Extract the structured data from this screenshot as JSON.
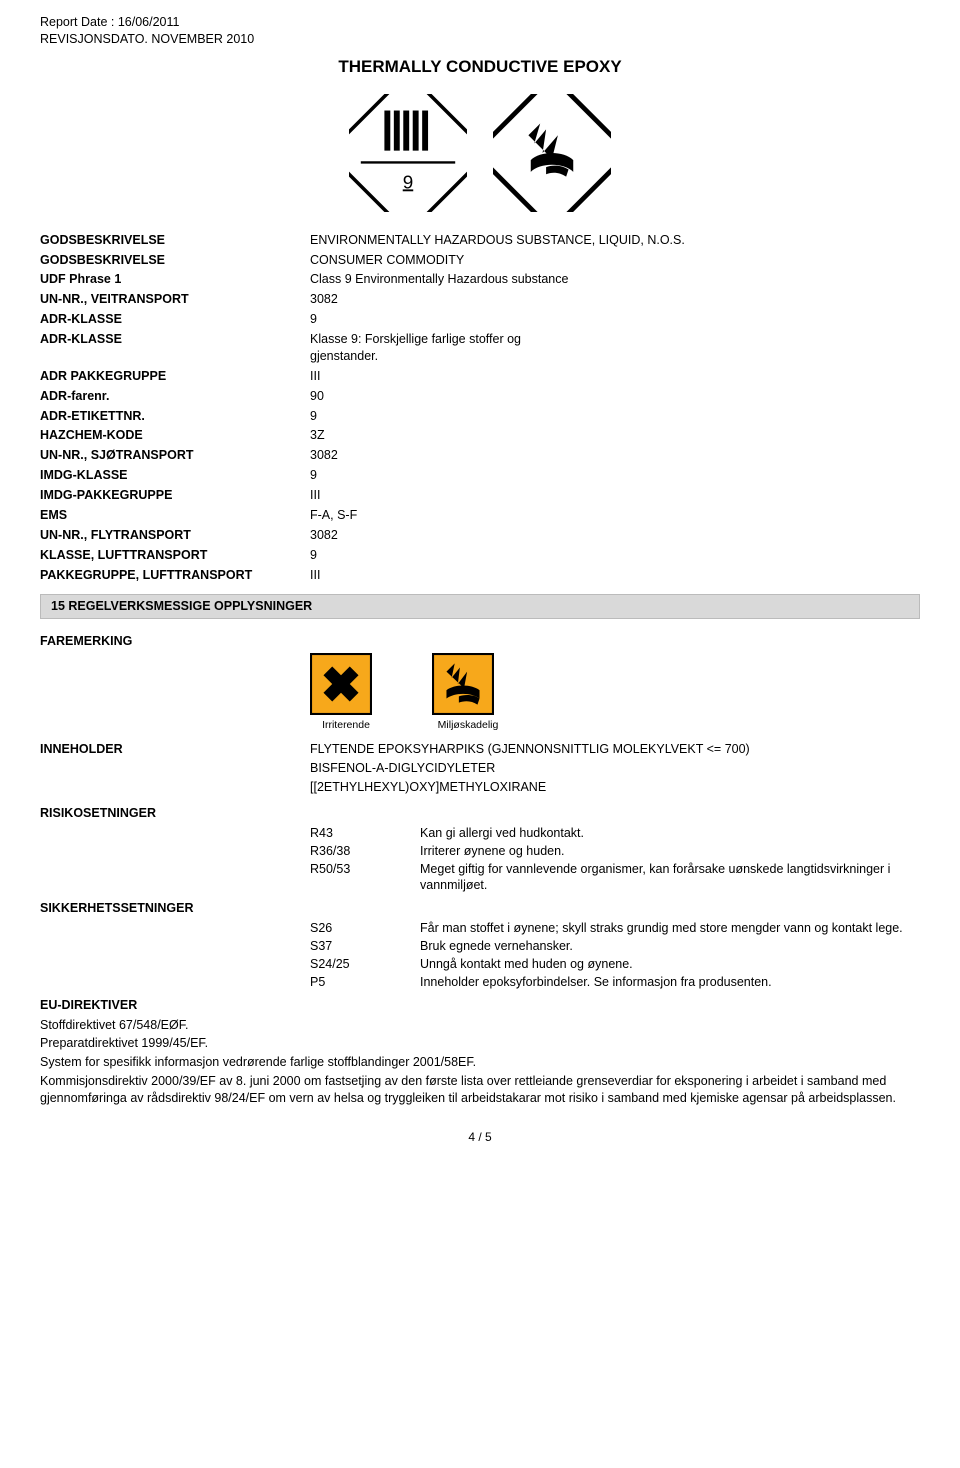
{
  "header": {
    "report_date_label": "Report Date : 16/06/2011",
    "revision_label": "REVISJONSDATO. NOVEMBER 2010",
    "title": "THERMALLY CONDUCTIVE EPOXY"
  },
  "placards": {
    "class9_label": "9",
    "colors": {
      "stripe": "#000000",
      "border": "#000000",
      "bg": "#ffffff",
      "env_bg": "#ffffff"
    }
  },
  "kv": [
    {
      "k": "GODSBESKRIVELSE",
      "v": "ENVIRONMENTALLY HAZARDOUS SUBSTANCE,  LIQUID,  N.O.S."
    },
    {
      "k": "GODSBESKRIVELSE",
      "v": "CONSUMER COMMODITY"
    },
    {
      "k": "UDF Phrase 1",
      "v": "Class 9 Environmentally Hazardous substance"
    },
    {
      "k": "UN-NR., VEITRANSPORT",
      "v": "3082"
    },
    {
      "k": "ADR-KLASSE",
      "v": "9"
    },
    {
      "k": "ADR-KLASSE",
      "v": "Klasse 9: Forskjellige farlige stoffer og gjenstander.",
      "multi": true
    },
    {
      "k": "ADR PAKKEGRUPPE",
      "v": "III"
    },
    {
      "k": "ADR-farenr.",
      "v": "90"
    },
    {
      "k": "ADR-ETIKETTNR.",
      "v": "9"
    },
    {
      "k": "HAZCHEM-KODE",
      "v": "3Z"
    },
    {
      "k": "UN-NR., SJØTRANSPORT",
      "v": "3082"
    },
    {
      "k": "IMDG-KLASSE",
      "v": "9"
    },
    {
      "k": "IMDG-PAKKEGRUPPE",
      "v": "III"
    },
    {
      "k": "EMS",
      "v": "F-A,  S-F"
    },
    {
      "k": "UN-NR., FLYTRANSPORT",
      "v": "3082"
    },
    {
      "k": "KLASSE, LUFTTRANSPORT",
      "v": "9"
    },
    {
      "k": "PAKKEGRUPPE, LUFTTRANSPORT",
      "v": "III",
      "keymulti": true
    }
  ],
  "section15": "15 REGELVERKSMESSIGE OPPLYSNINGER",
  "faremerking_label": "FAREMERKING",
  "hazard_icons": {
    "bg": "#f7a81b",
    "border": "#000000",
    "irr_caption": "Irriterende",
    "env_caption": "Miljøskadelig"
  },
  "inneholder_label": "INNEHOLDER",
  "inneholder_lines": [
    "FLYTENDE EPOKSYHARPIKS (GJENNONSNITTLIG MOLEKYLVEKT <= 700)",
    "BISFENOL-A-DIGLYCIDYLETER",
    "[[2ETHYLHEXYL)OXY]METHYLOXIRANE"
  ],
  "risiko_label": "RISIKOSETNINGER",
  "risiko": [
    {
      "code": "R43",
      "text": "Kan gi allergi ved hudkontakt."
    },
    {
      "code": "R36/38",
      "text": "Irriterer øynene og huden."
    },
    {
      "code": "R50/53",
      "text": "Meget giftig for vannlevende organismer,  kan forårsake uønskede langtidsvirkninger i vannmiljøet."
    }
  ],
  "sikkerhet_label": "SIKKERHETSSETNINGER",
  "sikkerhet": [
    {
      "code": "S26",
      "text": "Får man stoffet i øynene; skyll straks grundig med store mengder vann og kontakt lege."
    },
    {
      "code": "S37",
      "text": "Bruk egnede vernehansker."
    },
    {
      "code": "S24/25",
      "text": "Unngå kontakt med huden og øynene."
    },
    {
      "code": "P5",
      "text": "Inneholder epoksyforbindelser. Se informasjon fra produsenten."
    }
  ],
  "eu_label": "EU-DIREKTIVER",
  "eu_paras": [
    "Stoffdirektivet 67/548/EØF.",
    "Preparatdirektivet 1999/45/EF.",
    "System for spesifikk informasjon vedrørende farlige stoffblandinger 2001/58EF.",
    "Kommisjonsdirektiv 2000/39/EF av 8. juni 2000 om fastsetjing av den første lista over rettleiande grenseverdiar for eksponering i arbeidet i samband med gjennomføringa av rådsdirektiv 98/24/EF om vern av helsa og tryggleiken til arbeidstakarar mot risiko i samband med kjemiske agensar på arbeidsplassen."
  ],
  "footer": "4 /  5"
}
